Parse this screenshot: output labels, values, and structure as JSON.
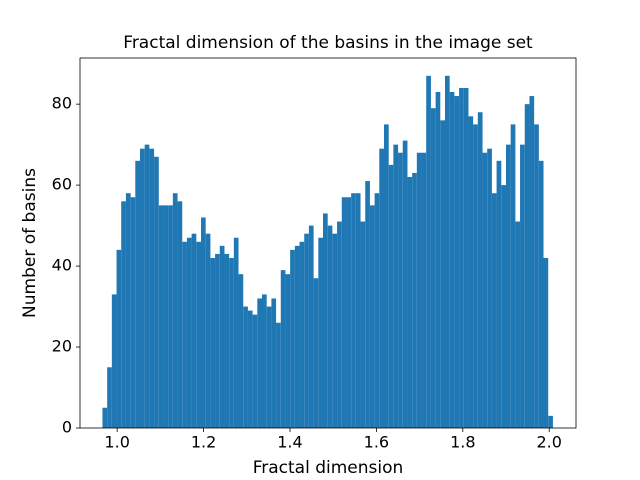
{
  "chart_data": {
    "type": "histogram",
    "title": "Fractal dimension of the basins in the image set",
    "x_label": "Fractal dimension",
    "y_label": "Number of basins",
    "color": "#1f77b4",
    "bins": [
      0.966,
      0.9769,
      0.9877,
      0.9986,
      1.0094,
      1.0203,
      1.0312,
      1.042,
      1.0529,
      1.0637,
      1.0746,
      1.0855,
      1.0963,
      1.1072,
      1.118,
      1.1289,
      1.1398,
      1.1506,
      1.1615,
      1.1723,
      1.1832,
      1.1941,
      1.2049,
      1.2158,
      1.2266,
      1.2375,
      1.2484,
      1.2592,
      1.2701,
      1.2809,
      1.2918,
      1.3027,
      1.3135,
      1.3244,
      1.3352,
      1.3461,
      1.357,
      1.3678,
      1.3787,
      1.3895,
      1.4004,
      1.4113,
      1.4221,
      1.433,
      1.4438,
      1.4547,
      1.4656,
      1.4764,
      1.4873,
      1.4981,
      1.509,
      1.5199,
      1.5307,
      1.5416,
      1.5524,
      1.5633,
      1.5742,
      1.585,
      1.5959,
      1.6067,
      1.6176,
      1.6285,
      1.6393,
      1.6502,
      1.661,
      1.6719,
      1.6828,
      1.6936,
      1.7045,
      1.7153,
      1.7262,
      1.7371,
      1.7479,
      1.7588,
      1.7696,
      1.7805,
      1.7914,
      1.8022,
      1.8131,
      1.8239,
      1.8348,
      1.8457,
      1.8565,
      1.8674,
      1.8782,
      1.8891,
      1.9,
      1.9108,
      1.9217,
      1.9325,
      1.9434,
      1.9543,
      1.9651,
      1.976,
      1.9868,
      1.9977,
      2.0086
    ],
    "values": [
      5,
      15,
      33,
      44,
      56,
      58,
      57,
      66,
      69,
      70,
      69,
      67,
      55,
      55,
      55,
      58,
      56,
      46,
      47,
      48,
      46,
      52,
      48,
      42,
      43,
      45,
      43,
      42,
      47,
      38,
      30,
      29,
      28,
      32,
      33,
      30,
      32,
      26,
      39,
      38,
      44,
      45,
      46,
      48,
      50,
      37,
      47,
      53,
      50,
      48,
      51,
      57,
      57,
      58,
      58,
      51,
      61,
      55,
      58,
      69,
      75,
      65,
      70,
      68,
      71,
      62,
      63,
      68,
      68,
      87,
      79,
      83,
      76,
      87,
      83,
      82,
      84,
      84,
      77,
      75,
      78,
      68,
      69,
      58,
      66,
      60,
      70,
      75,
      51,
      70,
      80,
      82,
      75,
      66,
      42,
      3
    ],
    "xlim": [
      0.914,
      2.062
    ],
    "ylim": [
      0,
      91.4
    ],
    "xticks": [
      {
        "value": 1.0,
        "label": "1.0"
      },
      1.2,
      1.4,
      1.6,
      1.8,
      {
        "value": 2.0,
        "label": "2.0"
      }
    ],
    "yticks": [
      0,
      20,
      40,
      60,
      80
    ]
  }
}
